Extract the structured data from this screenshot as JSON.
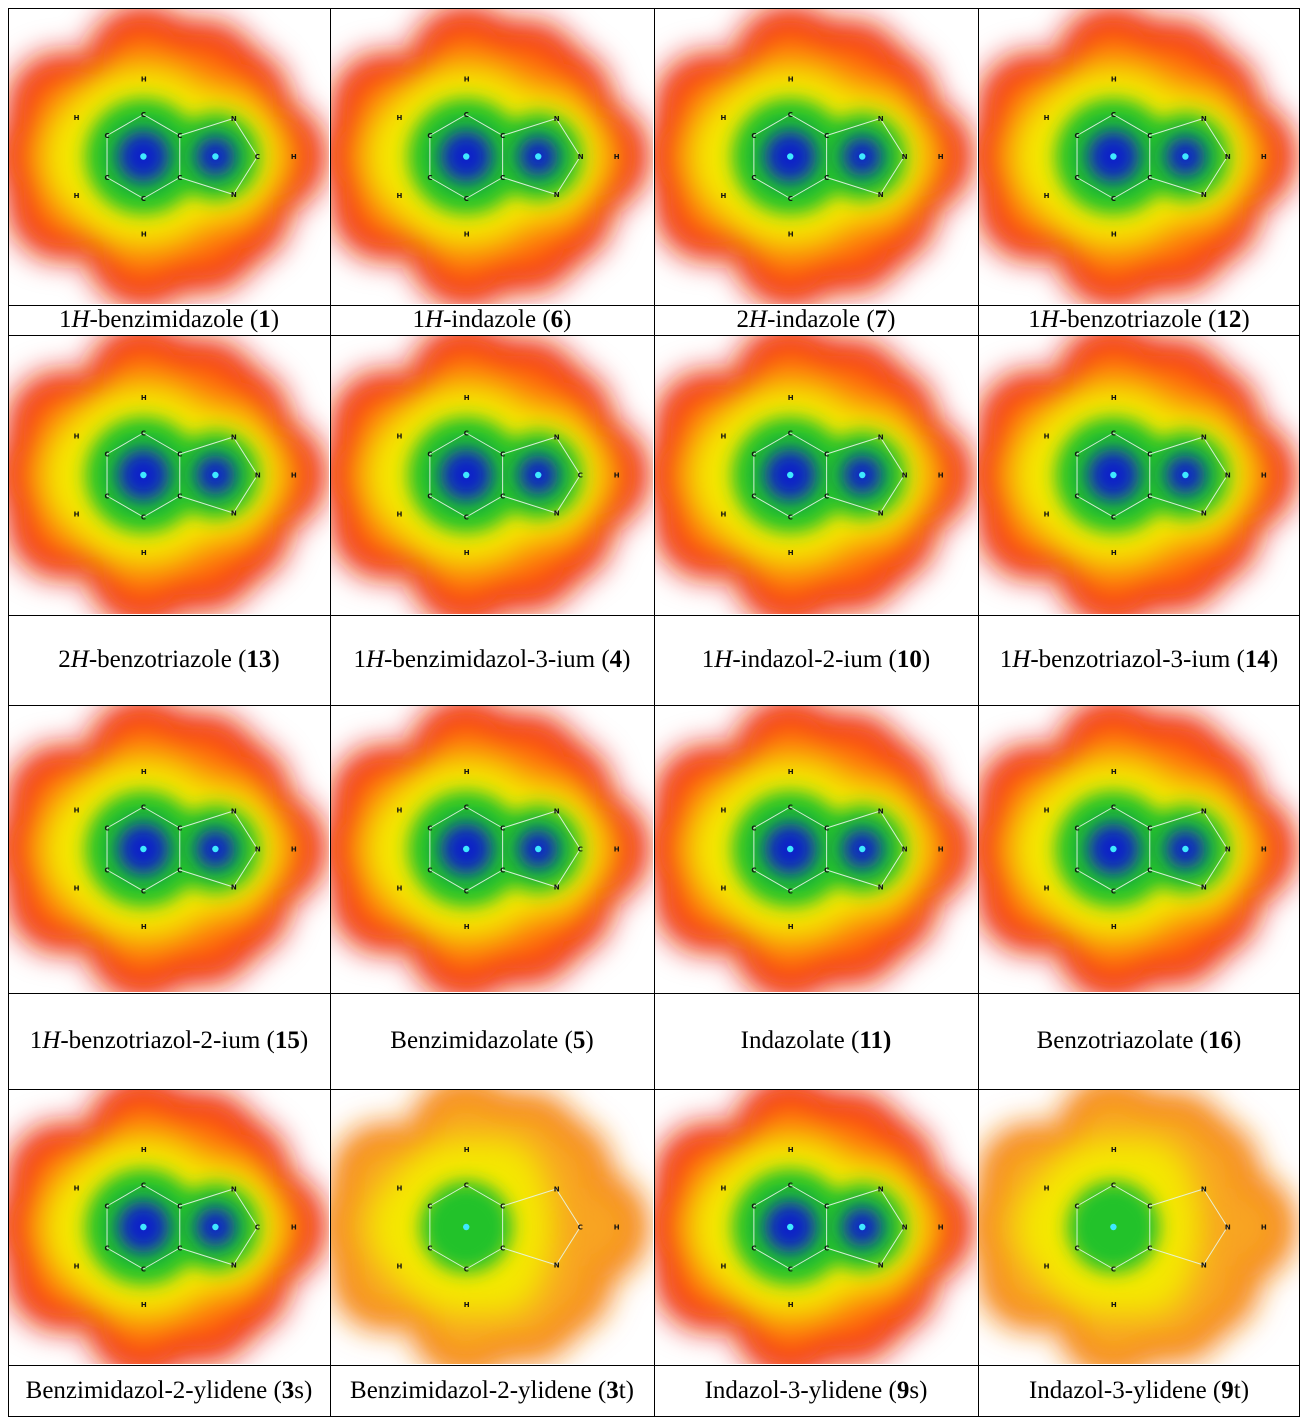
{
  "rows": [
    {
      "cells": [
        {
          "parts": [
            "1",
            {
              "i": "H"
            },
            "-benzimidazole (",
            {
              "b": "1"
            },
            ")"
          ],
          "variant": "normal",
          "ring5": "bimid"
        },
        {
          "parts": [
            "1",
            {
              "i": "H"
            },
            "-indazole (",
            {
              "b": "6"
            },
            ")"
          ],
          "variant": "normal",
          "ring5": "ind"
        },
        {
          "parts": [
            "2",
            {
              "i": "H"
            },
            "-indazole (",
            {
              "b": "7"
            },
            ")"
          ],
          "variant": "normal",
          "ring5": "ind"
        },
        {
          "parts": [
            "1",
            {
              "i": "H"
            },
            "-benzotriazole (",
            {
              "b": "12"
            },
            ")"
          ],
          "variant": "normal",
          "ring5": "btri"
        }
      ]
    },
    {
      "cells": [
        {
          "parts": [
            "2",
            {
              "i": "H"
            },
            "-benzotriazole (",
            {
              "b": "13"
            },
            ")"
          ],
          "variant": "normal",
          "ring5": "btri"
        },
        {
          "parts": [
            "1",
            {
              "i": "H"
            },
            "-benzimidazol-3-ium (",
            {
              "b": "4"
            },
            ")"
          ],
          "variant": "normal",
          "ring5": "bimid"
        },
        {
          "parts": [
            "1",
            {
              "i": "H"
            },
            "-indazol-2-ium (",
            {
              "b": "10"
            },
            ")"
          ],
          "variant": "normal",
          "ring5": "ind"
        },
        {
          "parts": [
            "1",
            {
              "i": "H"
            },
            "-benzotriazol-3-ium (",
            {
              "b": "14"
            },
            ")"
          ],
          "variant": "normal",
          "ring5": "btri"
        }
      ]
    },
    {
      "cells": [
        {
          "parts": [
            "1",
            {
              "i": "H"
            },
            "-benzotriazol-2-ium (",
            {
              "b": "15"
            },
            ")"
          ],
          "variant": "normal",
          "ring5": "btri"
        },
        {
          "parts": [
            "Benzimidazolate (",
            {
              "b": "5"
            },
            ")"
          ],
          "variant": "normal",
          "ring5": "bimid"
        },
        {
          "parts": [
            "Indazolate (",
            {
              "b": "11)"
            }
          ],
          "variant": "normal",
          "ring5": "ind"
        },
        {
          "parts": [
            "Benzotriazolate (",
            {
              "b": "16"
            },
            ")"
          ],
          "variant": "normal",
          "ring5": "btri"
        }
      ]
    },
    {
      "cells": [
        {
          "parts": [
            "Benzimidazol-2-ylidene (",
            {
              "b": "3"
            },
            "s)"
          ],
          "variant": "normal",
          "ring5": "bimid"
        },
        {
          "parts": [
            "Benzimidazol-2-ylidene (",
            {
              "b": "3"
            },
            "t)"
          ],
          "variant": "triplet",
          "ring5": "bimid"
        },
        {
          "parts": [
            "Indazol-3-ylidene (",
            {
              "b": "9"
            },
            "s)"
          ],
          "variant": "normal",
          "ring5": "ind"
        },
        {
          "parts": [
            "Indazol-3-ylidene (",
            {
              "b": "9"
            },
            "t)"
          ],
          "variant": "triplet",
          "ring5": "ind"
        }
      ]
    }
  ],
  "colors": {
    "red": "#e8160c",
    "orange": "#ff6a10",
    "yellow": "#f4e800",
    "green": "#22c22a",
    "blue": "#0a20c8",
    "cyan": "#3ee8ff"
  }
}
